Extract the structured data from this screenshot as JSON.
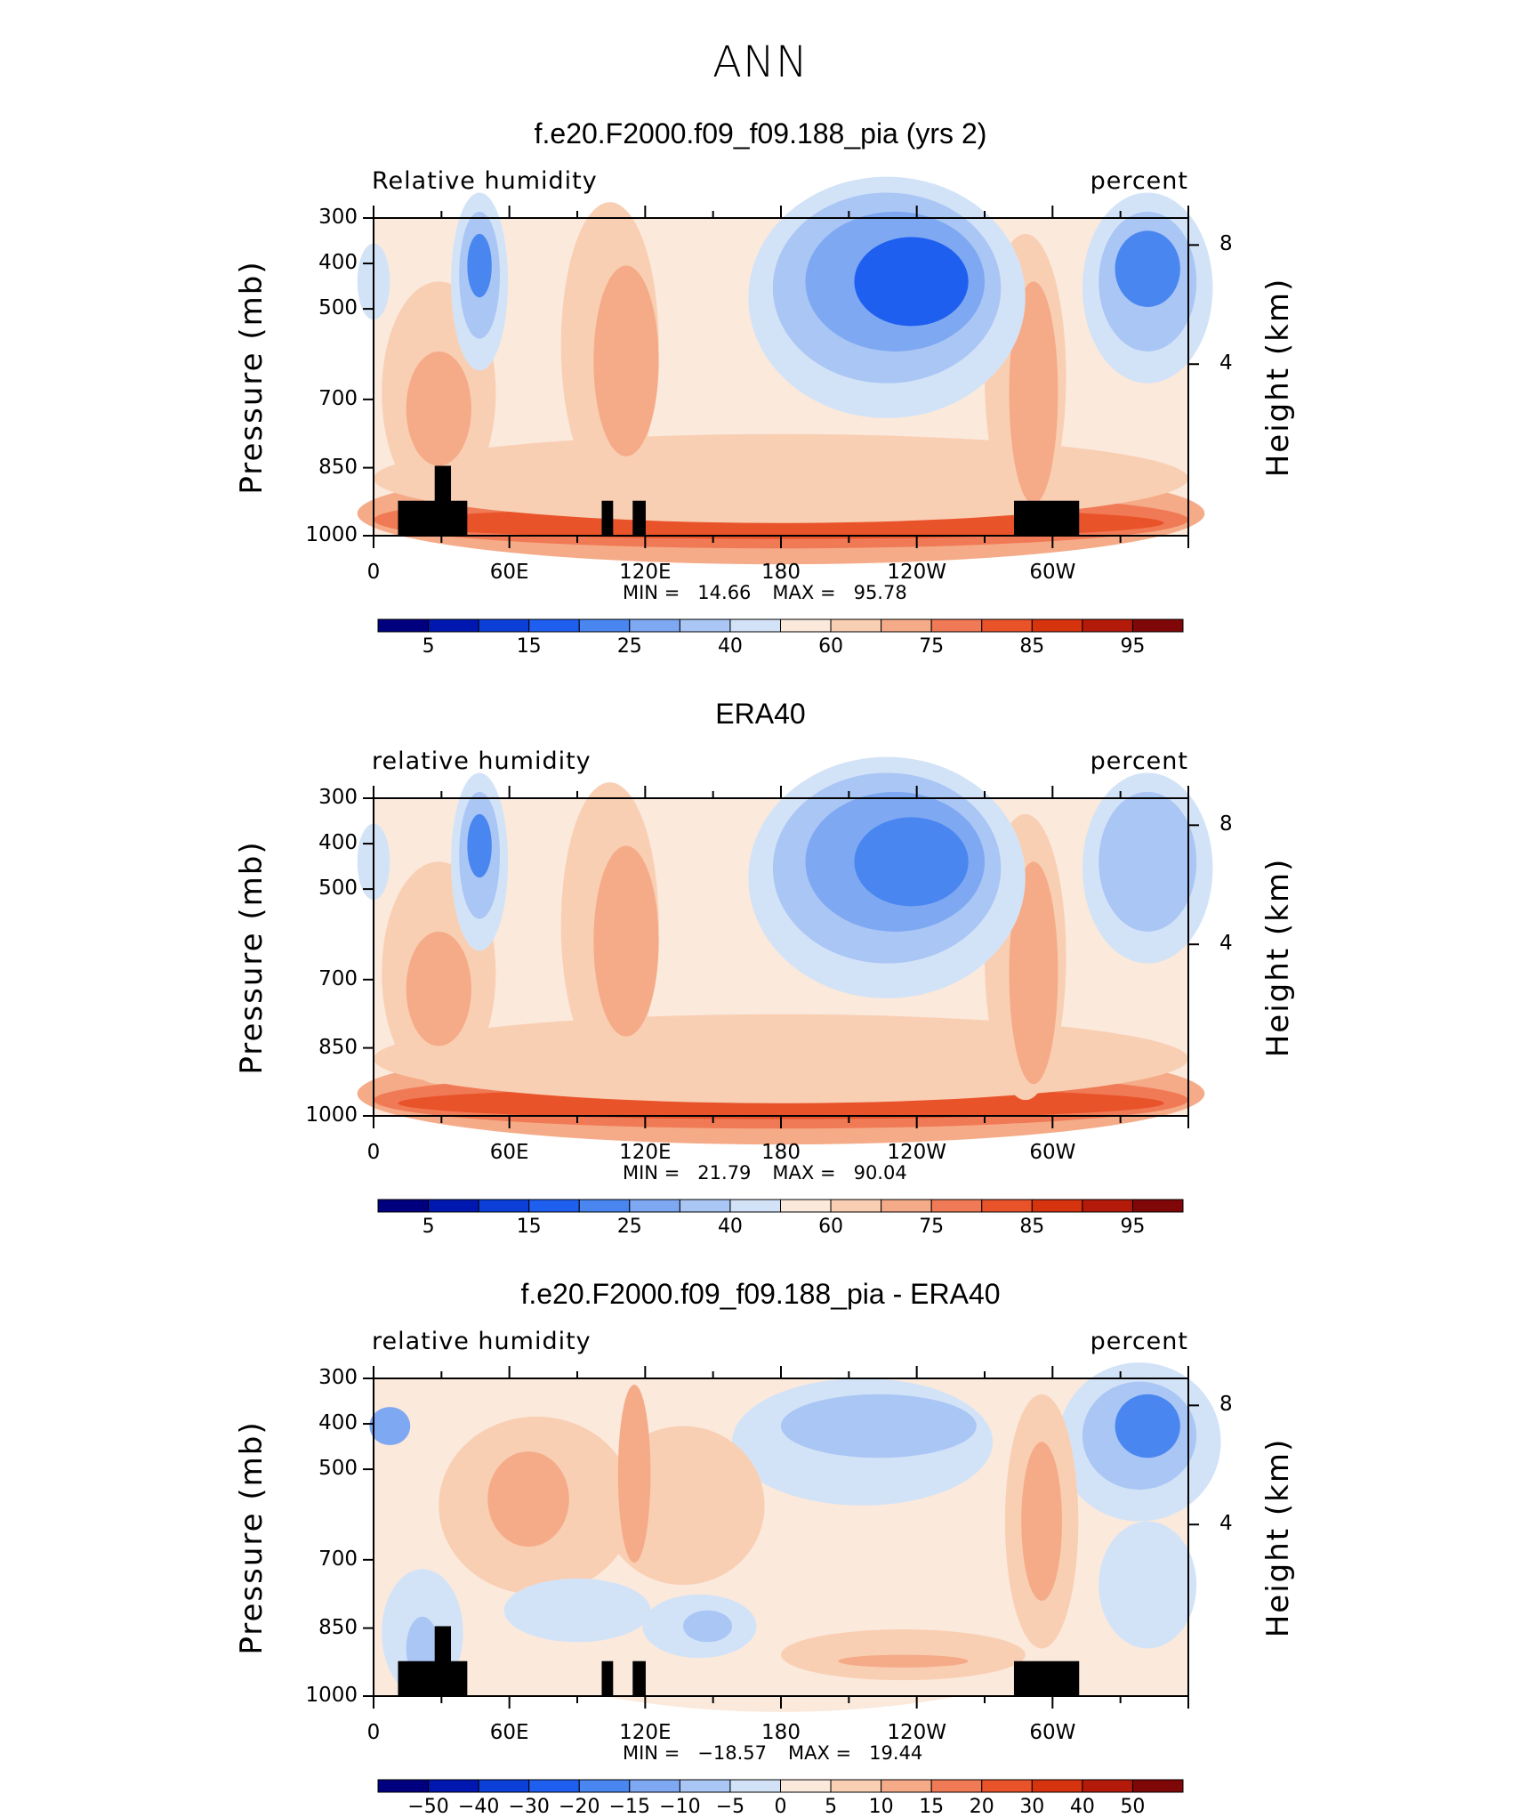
{
  "main_title": "ANN",
  "colors": {
    "abs_scale": [
      "#00007f",
      "#0018b0",
      "#0b3fd8",
      "#1f5ff0",
      "#4a86f0",
      "#7ea8f2",
      "#aac6f5",
      "#d3e3f7",
      "#fbe9dc",
      "#f9cfb4",
      "#f5ab88",
      "#f07a55",
      "#e9532a",
      "#d6330f",
      "#b31a0a",
      "#7f0707"
    ],
    "diff_scale": [
      "#00007f",
      "#0018b0",
      "#0b3fd8",
      "#1f5ff0",
      "#4a86f0",
      "#7ea8f2",
      "#aac6f5",
      "#d3e3f7",
      "#fbe9dc",
      "#f9cfb4",
      "#f5ab88",
      "#f07a55",
      "#e9532a",
      "#d6330f",
      "#b31a0a",
      "#7f0707"
    ],
    "topography": "#000000"
  },
  "chart_data": [
    {
      "type": "heatmap",
      "title": "f.e20.F2000.f09_f09.188_pia (yrs 2)",
      "left_label": "Relative humidity",
      "right_label": "percent",
      "ylabel": "Pressure (mb)",
      "y2label": "Height (km)",
      "yticks": [
        "300",
        "400",
        "500",
        "700",
        "850",
        "1000"
      ],
      "xticks": [
        "0",
        "60E",
        "120E",
        "180",
        "120W",
        "60W"
      ],
      "y2ticks": [
        "8",
        "4"
      ],
      "stats": {
        "min_label": "MIN =",
        "min": "14.66",
        "max_label": "MAX =",
        "max": "95.78"
      },
      "colorbar_labels": [
        "5",
        "15",
        "25",
        "40",
        "60",
        "75",
        "85",
        "95"
      ],
      "xlim": [
        0,
        360
      ],
      "ylim": [
        1000,
        300
      ]
    },
    {
      "type": "heatmap",
      "title": "ERA40",
      "left_label": "relative humidity",
      "right_label": "percent",
      "ylabel": "Pressure (mb)",
      "y2label": "Height (km)",
      "yticks": [
        "300",
        "400",
        "500",
        "700",
        "850",
        "1000"
      ],
      "xticks": [
        "0",
        "60E",
        "120E",
        "180",
        "120W",
        "60W"
      ],
      "y2ticks": [
        "8",
        "4"
      ],
      "stats": {
        "min_label": "MIN =",
        "min": "21.79",
        "max_label": "MAX =",
        "max": "90.04"
      },
      "colorbar_labels": [
        "5",
        "15",
        "25",
        "40",
        "60",
        "75",
        "85",
        "95"
      ],
      "xlim": [
        0,
        360
      ],
      "ylim": [
        1000,
        300
      ]
    },
    {
      "type": "heatmap",
      "title": "f.e20.F2000.f09_f09.188_pia - ERA40",
      "left_label": "relative humidity",
      "right_label": "percent",
      "ylabel": "Pressure (mb)",
      "y2label": "Height (km)",
      "yticks": [
        "300",
        "400",
        "500",
        "700",
        "850",
        "1000"
      ],
      "xticks": [
        "0",
        "60E",
        "120E",
        "180",
        "120W",
        "60W"
      ],
      "y2ticks": [
        "8",
        "4"
      ],
      "stats": {
        "min_label": "MIN =",
        "min": "−18.57",
        "max_label": "MAX =",
        "max": "19.44"
      },
      "colorbar_labels": [
        "−50",
        "−40",
        "−30",
        "−20",
        "−15",
        "−10",
        "−5",
        "0",
        "5",
        "10",
        "15",
        "20",
        "30",
        "40",
        "50"
      ],
      "xlim": [
        0,
        360
      ],
      "ylim": [
        1000,
        300
      ]
    }
  ]
}
